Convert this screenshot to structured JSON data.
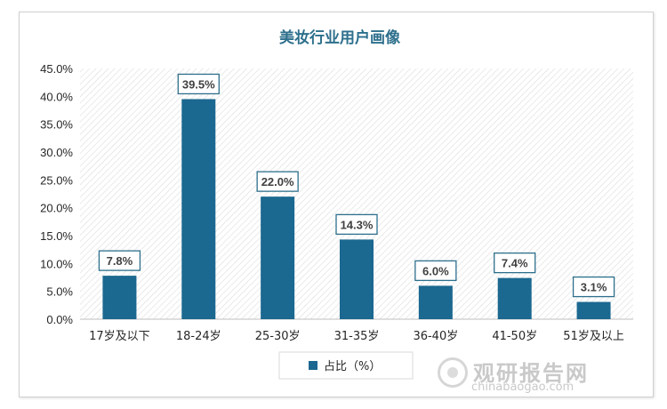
{
  "chart_data": {
    "type": "bar",
    "title": "美妆行业用户画像",
    "categories": [
      "17岁及以下",
      "18-24岁",
      "25-30岁",
      "31-35岁",
      "36-40岁",
      "41-50岁",
      "51岁及以上"
    ],
    "series": [
      {
        "name": "占比（%）",
        "values": [
          7.8,
          39.5,
          22.0,
          14.3,
          6.0,
          7.4,
          3.1
        ]
      }
    ],
    "data_labels": [
      "7.8%",
      "39.5%",
      "22.0%",
      "14.3%",
      "6.0%",
      "7.4%",
      "3.1%"
    ],
    "y_ticks": [
      "0.0%",
      "5.0%",
      "10.0%",
      "15.0%",
      "20.0%",
      "25.0%",
      "30.0%",
      "35.0%",
      "40.0%",
      "45.0%"
    ],
    "ylim": [
      0,
      45
    ],
    "xlabel": "",
    "ylabel": "",
    "legend_position": "bottom",
    "grid": false,
    "colors": {
      "bar": "#1b6890",
      "title": "#2d6f8c",
      "label_border": "#2d6f8c",
      "label_text": "#404040",
      "axis_text": "#262626",
      "plot_hatch": "#dedede"
    }
  },
  "watermark": {
    "brand": "观研报告网",
    "url": "chinabaogao.com"
  }
}
